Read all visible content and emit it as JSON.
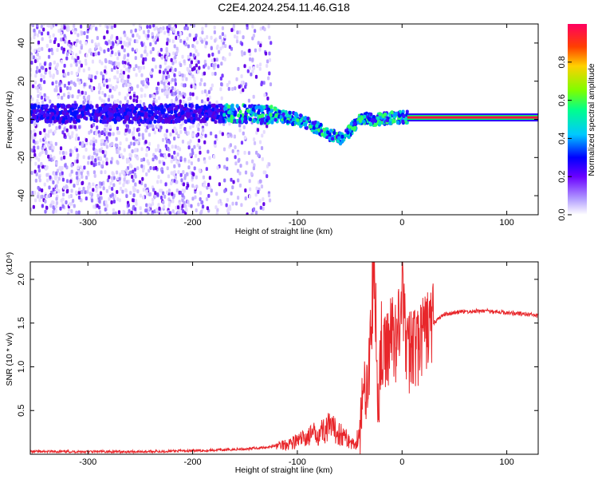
{
  "title": "C2E4.2024.254.11.46.G18",
  "chart_data": [
    {
      "type": "heatmap",
      "xlabel": "Height of straight line (km)",
      "ylabel": "Frequency (Hz)",
      "xlim": [
        -355,
        130
      ],
      "ylim": [
        -50,
        50
      ],
      "xticks": [
        -300,
        -200,
        -100,
        0,
        100
      ],
      "yticks": [
        -40,
        -20,
        0,
        20,
        40
      ],
      "colorbar": {
        "label": "Normalized spectral amplitude",
        "range": [
          0,
          1
        ],
        "ticks": [
          "0.0",
          "0.2",
          "0.4",
          "0.6",
          "0.8"
        ],
        "colors": [
          "#ffffff",
          "#a08cff",
          "#6a00ff",
          "#0000ff",
          "#00c8ff",
          "#00ff8c",
          "#7cff00",
          "#ffd000",
          "#ff4000",
          "#ff0060"
        ]
      },
      "ridge": {
        "x": [
          -355,
          -300,
          -250,
          -200,
          -150,
          -120,
          -100,
          -80,
          -70,
          -60,
          -55,
          -45,
          -40,
          -35,
          -30,
          -20,
          -10,
          0,
          5,
          130
        ],
        "freq": [
          3,
          3,
          3,
          3,
          3,
          2,
          0,
          -5,
          -8,
          -10,
          -9,
          -3,
          0,
          1,
          0,
          0,
          1,
          1,
          1,
          1
        ]
      }
    },
    {
      "type": "line",
      "xlabel": "Height of straight line (km)",
      "ylabel": "SNR (10 * v/v)",
      "yscale_note": "(x10⁴)",
      "xlim": [
        -355,
        130
      ],
      "ylim": [
        0,
        2.2
      ],
      "xticks": [
        -300,
        -200,
        -100,
        0,
        100
      ],
      "yticks": [
        "0.5",
        "1.0",
        "1.5",
        "2.0"
      ],
      "series": [
        {
          "color": "#e8262a",
          "x": [
            -355,
            -300,
            -250,
            -200,
            -170,
            -150,
            -130,
            -110,
            -100,
            -90,
            -80,
            -70,
            -60,
            -50,
            -45,
            -40,
            -35,
            -30,
            -27,
            -25,
            -23,
            -20,
            -18,
            -15,
            -10,
            -5,
            0,
            5,
            10,
            15,
            20,
            25,
            30,
            40,
            50,
            60,
            80,
            100,
            120,
            130
          ],
          "y": [
            0.03,
            0.03,
            0.03,
            0.04,
            0.05,
            0.06,
            0.08,
            0.12,
            0.15,
            0.2,
            0.25,
            0.3,
            0.25,
            0.15,
            0.1,
            0.3,
            0.8,
            1.2,
            2.2,
            1.5,
            0.5,
            1.3,
            1.0,
            1.2,
            1.4,
            1.3,
            1.9,
            1.1,
            1.3,
            1.2,
            1.35,
            1.45,
            1.5,
            1.6,
            1.62,
            1.63,
            1.64,
            1.62,
            1.6,
            1.58
          ]
        }
      ]
    }
  ]
}
